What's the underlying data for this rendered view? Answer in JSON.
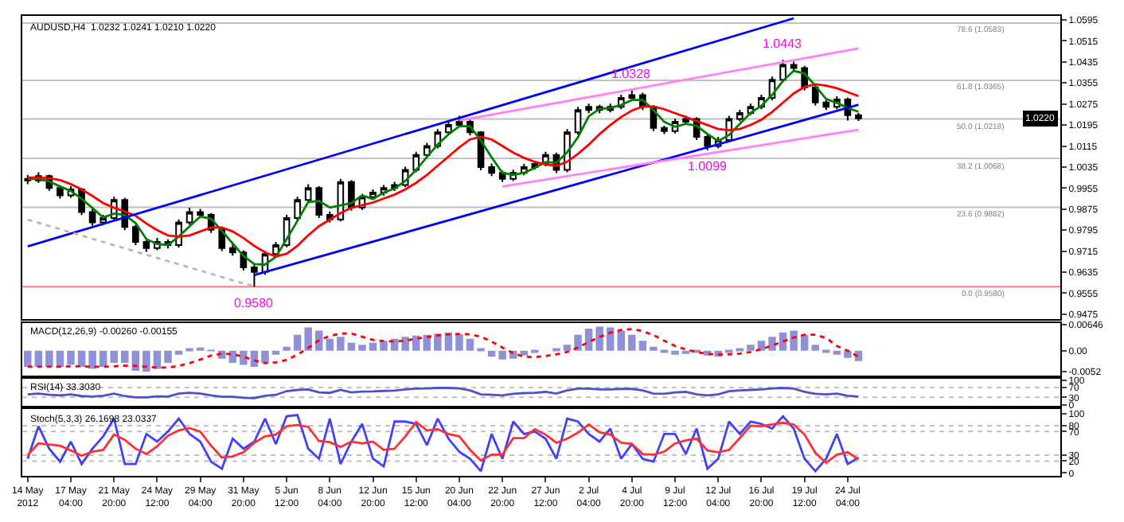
{
  "chart_data": [
    {
      "type": "candlestick",
      "title": "AUDUSD,H4  1.0232 1.0241 1.0210 1.0220",
      "tick_labels": "y",
      "color": "#000000",
      "categories": [
        null,
        null,
        null,
        null,
        null,
        null,
        null,
        null,
        null,
        null,
        null,
        null,
        null,
        null,
        null,
        null,
        null,
        null,
        null,
        null,
        null,
        null,
        null,
        null,
        null,
        null,
        null,
        null,
        null,
        null,
        null,
        null,
        null,
        null,
        null,
        null,
        null,
        null,
        null,
        null,
        null,
        null,
        null,
        null,
        null,
        null,
        null,
        null,
        null,
        null,
        null,
        null,
        null,
        null,
        null,
        null,
        null,
        null,
        null,
        null,
        null,
        null,
        null,
        null,
        null,
        null,
        null,
        null,
        null,
        null,
        null,
        null,
        null,
        null,
        null,
        null,
        null,
        null
      ],
      "ohlc": [
        [
          0.999,
          1.0005,
          0.997,
          0.9984
        ],
        [
          0.9984,
          1.0015,
          0.9975,
          1.0001
        ],
        [
          1.0001,
          1.0006,
          0.9945,
          0.9955
        ],
        [
          0.9955,
          0.9966,
          0.9915,
          0.9927
        ],
        [
          0.9927,
          0.9962,
          0.9918,
          0.995
        ],
        [
          0.995,
          0.9955,
          0.9852,
          0.9864
        ],
        [
          0.9864,
          0.9875,
          0.9812,
          0.9824
        ],
        [
          0.9824,
          0.9853,
          0.9815,
          0.9841
        ],
        [
          0.9841,
          0.9922,
          0.9832,
          0.991
        ],
        [
          0.991,
          0.9918,
          0.9795,
          0.9807
        ],
        [
          0.9807,
          0.9815,
          0.9738,
          0.975
        ],
        [
          0.975,
          0.9762,
          0.9712,
          0.9727
        ],
        [
          0.9727,
          0.9765,
          0.9718,
          0.975
        ],
        [
          0.975,
          0.976,
          0.9725,
          0.9738
        ],
        [
          0.9738,
          0.9836,
          0.9728,
          0.9824
        ],
        [
          0.9824,
          0.988,
          0.9815,
          0.9864
        ],
        [
          0.9864,
          0.9876,
          0.984,
          0.9853
        ],
        [
          0.9853,
          0.986,
          0.9784,
          0.9796
        ],
        [
          0.9796,
          0.9805,
          0.9715,
          0.9727
        ],
        [
          0.9727,
          0.974,
          0.9698,
          0.971
        ],
        [
          0.971,
          0.9718,
          0.9641,
          0.9653
        ],
        [
          0.9653,
          0.9668,
          0.958,
          0.9636
        ],
        [
          0.9636,
          0.9716,
          0.9625,
          0.9704
        ],
        [
          0.9704,
          0.975,
          0.9692,
          0.9738
        ],
        [
          0.9738,
          0.9853,
          0.973,
          0.9841
        ],
        [
          0.9841,
          0.9922,
          0.9832,
          0.991
        ],
        [
          0.991,
          0.997,
          0.99,
          0.9955
        ],
        [
          0.9955,
          0.9962,
          0.9841,
          0.9853
        ],
        [
          0.9853,
          0.9866,
          0.9824,
          0.9836
        ],
        [
          0.9836,
          0.999,
          0.9828,
          0.9978
        ],
        [
          0.9978,
          0.9985,
          0.9869,
          0.9881
        ],
        [
          0.9881,
          0.9933,
          0.9872,
          0.9921
        ],
        [
          0.9921,
          0.995,
          0.9912,
          0.9938
        ],
        [
          0.9938,
          0.9967,
          0.9926,
          0.9955
        ],
        [
          0.9955,
          0.9979,
          0.9944,
          0.9967
        ],
        [
          0.9967,
          1.0036,
          0.9958,
          1.0024
        ],
        [
          1.0024,
          1.0093,
          1.0015,
          1.0081
        ],
        [
          1.0081,
          1.0127,
          1.0072,
          1.0115
        ],
        [
          1.0115,
          1.0179,
          1.0106,
          1.0167
        ],
        [
          1.0167,
          1.0207,
          1.0158,
          1.0195
        ],
        [
          1.0195,
          1.023,
          1.0186,
          1.0207
        ],
        [
          1.0207,
          1.0215,
          1.0155,
          1.0167
        ],
        [
          1.0167,
          1.0172,
          1.0023,
          1.0035
        ],
        [
          1.0035,
          1.0048,
          1.0001,
          1.0013
        ],
        [
          1.0013,
          1.0022,
          0.9978,
          0.999
        ],
        [
          0.999,
          1.0025,
          0.9982,
          1.0013
        ],
        [
          1.0013,
          1.0047,
          1.0004,
          1.0035
        ],
        [
          1.0035,
          1.0059,
          1.0026,
          1.0047
        ],
        [
          1.0047,
          1.0093,
          1.0038,
          1.0081
        ],
        [
          1.0081,
          1.009,
          1.0012,
          1.0024
        ],
        [
          1.0024,
          1.0179,
          1.0015,
          1.0167
        ],
        [
          1.0167,
          1.0264,
          1.0158,
          1.0252
        ],
        [
          1.0252,
          1.0276,
          1.024,
          1.0264
        ],
        [
          1.0264,
          1.0272,
          1.024,
          1.0252
        ],
        [
          1.0252,
          1.0276,
          1.0243,
          1.0264
        ],
        [
          1.0264,
          1.031,
          1.0255,
          1.0298
        ],
        [
          1.0298,
          1.0328,
          1.0289,
          1.0309
        ],
        [
          1.0309,
          1.0318,
          1.0252,
          1.0264
        ],
        [
          1.0264,
          1.027,
          1.0172,
          1.0184
        ],
        [
          1.0184,
          1.0192,
          1.016,
          1.0172
        ],
        [
          1.0172,
          1.0219,
          1.0163,
          1.0207
        ],
        [
          1.0207,
          1.023,
          1.0198,
          1.0218
        ],
        [
          1.0218,
          1.0225,
          1.0138,
          1.015
        ],
        [
          1.015,
          1.0158,
          1.0099,
          1.0115
        ],
        [
          1.0115,
          1.015,
          1.0106,
          1.0138
        ],
        [
          1.0138,
          1.023,
          1.0129,
          1.0218
        ],
        [
          1.0218,
          1.0253,
          1.0209,
          1.0241
        ],
        [
          1.0241,
          1.0276,
          1.0232,
          1.0264
        ],
        [
          1.0264,
          1.031,
          1.0255,
          1.0298
        ],
        [
          1.0298,
          1.0379,
          1.0289,
          1.0367
        ],
        [
          1.0367,
          1.0443,
          1.0358,
          1.0424
        ],
        [
          1.0424,
          1.0436,
          1.04,
          1.0412
        ],
        [
          1.0412,
          1.042,
          1.0326,
          1.0338
        ],
        [
          1.0338,
          1.0346,
          1.0269,
          1.0281
        ],
        [
          1.0281,
          1.029,
          1.0252,
          1.0264
        ],
        [
          1.0264,
          1.0304,
          1.0255,
          1.0292
        ],
        [
          1.0292,
          1.03,
          1.0212,
          1.0232
        ],
        [
          1.0232,
          1.0241,
          1.021,
          1.022
        ]
      ],
      "series": [
        {
          "type": "line",
          "color": "#008000",
          "values": [
            0.999,
            0.999,
            0.998,
            0.9961,
            0.9944,
            0.9914,
            0.9879,
            0.9843,
            0.9858,
            0.9853,
            0.9822,
            0.9761,
            0.9742,
            0.9738,
            0.9771,
            0.9809,
            0.9847,
            0.9838,
            0.9792,
            0.9744,
            0.9697,
            0.9666,
            0.9664,
            0.9693,
            0.9761,
            0.983,
            0.9902,
            0.9906,
            0.9881,
            0.9889,
            0.9898,
            0.9927,
            0.9913,
            0.9938,
            0.9953,
            0.9982,
            1.0024,
            1.0073,
            1.0121,
            1.0159,
            1.019,
            1.019,
            1.0136,
            1.0072,
            1.0013,
            1.0005,
            1.0013,
            1.0032,
            1.0054,
            1.0051,
            1.0091,
            1.0148,
            1.0228,
            1.0256,
            1.026,
            1.0271,
            1.029,
            1.029,
            1.0252,
            1.0207,
            1.0188,
            1.0199,
            1.0192,
            1.0161,
            1.0134,
            1.0157,
            1.0199,
            1.0241,
            1.0268,
            1.031,
            1.0363,
            1.0401,
            1.0391,
            1.0344,
            1.0294,
            1.0279,
            1.026,
            1.0245
          ]
        },
        {
          "type": "line",
          "color": "#ff0000",
          "values": [
            0.9995,
            0.9995,
            0.9993,
            0.9985,
            0.997,
            0.995,
            0.9925,
            0.9898,
            0.988,
            0.9865,
            0.985,
            0.982,
            0.9795,
            0.9775,
            0.977,
            0.9775,
            0.979,
            0.9805,
            0.9805,
            0.979,
            0.9765,
            0.9735,
            0.971,
            0.9695,
            0.9705,
            0.9735,
            0.9775,
            0.981,
            0.9835,
            0.986,
            0.988,
            0.989,
            0.99,
            0.9915,
            0.993,
            0.995,
            0.9975,
            1.0005,
            1.004,
            1.0075,
            1.011,
            1.014,
            1.015,
            1.014,
            1.0115,
            1.009,
            1.007,
            1.0055,
            1.0045,
            1.004,
            1.0055,
            1.0085,
            1.012,
            1.016,
            1.0195,
            1.0225,
            1.025,
            1.0265,
            1.0265,
            1.0255,
            1.024,
            1.0225,
            1.021,
            1.0195,
            1.018,
            1.0175,
            1.018,
            1.0195,
            1.0215,
            1.0245,
            1.028,
            1.0315,
            1.034,
            1.035,
            1.0345,
            1.0335,
            1.032,
            1.0305
          ]
        },
        {
          "type": "line",
          "color": "#0000ff",
          "values": [
            0.9733,
            null,
            null,
            null,
            null,
            null,
            null,
            null,
            null,
            null,
            null,
            null,
            null,
            null,
            null,
            null,
            null,
            null,
            null,
            null,
            null,
            null,
            null,
            null,
            null,
            null,
            null,
            null,
            null,
            null,
            null,
            null,
            null,
            null,
            null,
            null,
            null,
            null,
            null,
            null,
            null,
            null,
            null,
            null,
            null,
            null,
            null,
            null,
            null,
            null,
            null,
            null,
            null,
            null,
            null,
            null,
            null,
            null,
            null,
            null,
            null,
            null,
            null,
            null,
            null,
            null,
            null,
            null,
            null,
            null,
            null,
            1.0601,
            null,
            null,
            null,
            null,
            null,
            null
          ]
        },
        {
          "type": "line",
          "color": "#0000ff",
          "values": [
            null,
            null,
            null,
            null,
            null,
            null,
            null,
            null,
            null,
            null,
            null,
            null,
            null,
            null,
            null,
            null,
            null,
            null,
            null,
            null,
            null,
            0.9624,
            null,
            null,
            null,
            null,
            null,
            null,
            null,
            null,
            null,
            null,
            null,
            null,
            null,
            null,
            null,
            null,
            null,
            null,
            null,
            null,
            null,
            null,
            null,
            null,
            null,
            null,
            null,
            null,
            null,
            null,
            null,
            null,
            null,
            null,
            null,
            null,
            null,
            null,
            null,
            null,
            null,
            null,
            null,
            null,
            null,
            null,
            null,
            null,
            null,
            null,
            null,
            null,
            null,
            null,
            null,
            1.0272
          ]
        },
        {
          "type": "line",
          "color": "#ff80ff",
          "values": [
            null,
            null,
            null,
            null,
            null,
            null,
            null,
            null,
            null,
            null,
            null,
            null,
            null,
            null,
            null,
            null,
            null,
            null,
            null,
            null,
            null,
            null,
            null,
            null,
            null,
            null,
            null,
            null,
            null,
            null,
            null,
            null,
            null,
            null,
            null,
            null,
            null,
            null,
            null,
            null,
            1.0212,
            null,
            null,
            null,
            null,
            null,
            null,
            null,
            null,
            null,
            null,
            null,
            null,
            null,
            null,
            null,
            null,
            null,
            null,
            null,
            null,
            null,
            null,
            null,
            null,
            null,
            null,
            null,
            null,
            null,
            null,
            null,
            null,
            null,
            null,
            null,
            null,
            1.0486
          ]
        },
        {
          "type": "line",
          "color": "#ff80ff",
          "values": [
            null,
            null,
            null,
            null,
            null,
            null,
            null,
            null,
            null,
            null,
            null,
            null,
            null,
            null,
            null,
            null,
            null,
            null,
            null,
            null,
            null,
            null,
            null,
            null,
            null,
            null,
            null,
            null,
            null,
            null,
            null,
            null,
            null,
            null,
            null,
            null,
            null,
            null,
            null,
            null,
            null,
            null,
            null,
            null,
            0.9961,
            null,
            null,
            null,
            null,
            null,
            null,
            null,
            null,
            null,
            null,
            null,
            null,
            null,
            null,
            null,
            null,
            null,
            null,
            null,
            null,
            null,
            null,
            null,
            null,
            null,
            null,
            null,
            null,
            null,
            null,
            null,
            null,
            1.0177
          ]
        },
        {
          "type": "line",
          "color": "#b8b8b8",
          "line_style": "dotted",
          "values": [
            0.9835,
            null,
            null,
            null,
            null,
            null,
            null,
            null,
            null,
            null,
            null,
            null,
            null,
            null,
            null,
            null,
            null,
            null,
            null,
            null,
            null,
            0.958,
            null,
            null,
            null,
            null,
            null,
            null,
            null,
            null,
            null,
            null,
            null,
            null,
            null,
            null,
            null,
            null,
            null,
            null,
            null,
            null,
            null,
            null,
            null,
            null,
            null,
            null,
            null,
            null,
            null,
            null,
            null,
            null,
            null,
            null,
            null,
            null,
            null,
            null,
            null,
            null,
            null,
            null,
            null,
            null,
            null,
            null,
            null,
            null,
            null,
            null,
            null,
            null,
            null,
            null,
            null,
            null
          ]
        }
      ],
      "ref_lines": [
        {
          "axis": "y",
          "value": 1.0583,
          "label": "78.6 (1.0583)",
          "color": "#c0c0c0"
        },
        {
          "axis": "y",
          "value": 1.0365,
          "label": "61.8 (1.0365)",
          "color": "#c0c0c0"
        },
        {
          "axis": "y",
          "value": 1.0218,
          "label": "50.0 (1.0218)",
          "color": "#c0c0c0"
        },
        {
          "axis": "y",
          "value": 1.0068,
          "label": "38.2 (1.0068)",
          "color": "#c0c0c0"
        },
        {
          "axis": "y",
          "value": 0.9882,
          "label": "23.6 (0.9882)",
          "color": "#c0c0c0"
        },
        {
          "axis": "y",
          "value": 0.958,
          "label": "0.0 (0.9580)",
          "color": "#ff8080"
        }
      ],
      "annotations": [
        {
          "text": "0.9580",
          "y": 0.958
        },
        {
          "text": "1.0328",
          "y": 1.0328
        },
        {
          "text": "1.0099",
          "y": 1.0099
        },
        {
          "text": "1.0443",
          "y": 1.0443
        },
        "1.0220"
      ],
      "ylim": [
        0.9455,
        1.061
      ],
      "yticks": [
        1.0595,
        1.0515,
        1.0435,
        1.0355,
        1.0275,
        1.0195,
        1.0115,
        1.0035,
        0.9955,
        0.9875,
        0.9795,
        0.9715,
        0.9635,
        0.9555,
        0.9475
      ]
    },
    {
      "type": "bar",
      "title": "MACD(12,26,9) -0.00260 -0.00155",
      "tick_labels": "y",
      "categories": [
        null,
        null,
        null,
        null,
        null,
        null,
        null,
        null,
        null,
        null,
        null,
        null,
        null,
        null,
        null,
        null,
        null,
        null,
        null,
        null,
        null,
        null,
        null,
        null,
        null,
        null,
        null,
        null,
        null,
        null,
        null,
        null,
        null,
        null,
        null,
        null,
        null,
        null,
        null,
        null,
        null,
        null,
        null,
        null,
        null,
        null,
        null,
        null,
        null,
        null,
        null,
        null,
        null,
        null,
        null,
        null,
        null,
        null,
        null,
        null,
        null,
        null,
        null,
        null,
        null,
        null,
        null,
        null,
        null,
        null,
        null,
        null,
        null,
        null,
        null,
        null,
        null,
        null
      ],
      "series": [
        {
          "type": "bar",
          "color": "#9090d8",
          "values": [
            -0.004,
            -0.004,
            -0.004,
            -0.004,
            -0.0035,
            -0.004,
            -0.0045,
            -0.004,
            -0.003,
            -0.003,
            -0.005,
            -0.0052,
            -0.0045,
            -0.003,
            -0.001,
            0.0005,
            0.0008,
            0.0002,
            -0.002,
            -0.003,
            -0.0035,
            -0.004,
            -0.003,
            -0.001,
            0.001,
            0.004,
            0.0058,
            0.005,
            0.003,
            0.0035,
            0.002,
            0.0015,
            0.002,
            0.0025,
            0.003,
            0.0035,
            0.0038,
            0.004,
            0.0043,
            0.0045,
            0.0042,
            0.003,
            0.0005,
            -0.0015,
            -0.0022,
            -0.002,
            -0.0012,
            -0.0005,
            0.0,
            0.0003,
            0.0015,
            0.004,
            0.0055,
            0.006,
            0.0058,
            0.005,
            0.004,
            0.0025,
            0.001,
            -0.0005,
            -0.001,
            -0.0008,
            -0.0005,
            -0.0012,
            -0.0015,
            -0.0005,
            0.0005,
            0.0015,
            0.0025,
            0.0035,
            0.0045,
            0.005,
            0.004,
            0.0015,
            -0.0002,
            -0.001,
            -0.0018,
            -0.0026
          ]
        },
        {
          "type": "line",
          "color": "#ff0000",
          "line_style": "dotted",
          "values": [
            -0.004,
            -0.004,
            -0.004,
            -0.004,
            -0.0039,
            -0.0039,
            -0.004,
            -0.004,
            -0.0039,
            -0.0037,
            -0.0038,
            -0.004,
            -0.0042,
            -0.0042,
            -0.0038,
            -0.0031,
            -0.0022,
            -0.0012,
            -0.0007,
            -0.0009,
            -0.0015,
            -0.0024,
            -0.0031,
            -0.0029,
            -0.0023,
            -0.001,
            0.0007,
            0.0026,
            0.0037,
            0.0043,
            0.0043,
            0.0035,
            0.0027,
            0.0024,
            0.0023,
            0.0025,
            0.003,
            0.0034,
            0.0038,
            0.0041,
            0.0042,
            0.0041,
            0.0035,
            0.0023,
            0.0008,
            -0.0006,
            -0.0015,
            -0.0016,
            -0.0013,
            -0.0009,
            -0.0003,
            0.0008,
            0.0022,
            0.0034,
            0.0045,
            0.0052,
            0.0054,
            0.0049,
            0.0039,
            0.0025,
            0.0012,
            0.0003,
            -0.0003,
            -0.0008,
            -0.0009,
            -0.0009,
            -0.0007,
            -0.0003,
            0.0004,
            0.0013,
            0.0023,
            0.0033,
            0.004,
            0.004,
            0.0032,
            0.0012,
            0.0,
            -0.0015
          ]
        }
      ],
      "ylim": [
        -0.0062,
        0.007
      ],
      "yticks": [
        {
          "value": 0.00646,
          "label": "0.00646"
        },
        {
          "value": 0,
          "label": "0.00"
        },
        {
          "value": -0.0052,
          "label": "-0.0052"
        }
      ]
    },
    {
      "type": "line",
      "title": "RSI(14) 33.3030",
      "tick_labels": "y",
      "categories": [
        null,
        null,
        null,
        null,
        null,
        null,
        null,
        null,
        null,
        null,
        null,
        null,
        null,
        null,
        null,
        null,
        null,
        null,
        null,
        null,
        null,
        null,
        null,
        null,
        null,
        null,
        null,
        null,
        null,
        null,
        null,
        null,
        null,
        null,
        null,
        null,
        null,
        null,
        null,
        null,
        null,
        null,
        null,
        null,
        null,
        null,
        null,
        null,
        null,
        null,
        null,
        null,
        null,
        null,
        null,
        null,
        null,
        null,
        null,
        null,
        null,
        null,
        null,
        null,
        null,
        null,
        null,
        null,
        null,
        null,
        null,
        null,
        null,
        null,
        null,
        null,
        null,
        null
      ],
      "series": [
        {
          "color": "#5050c8",
          "values": [
            42,
            45,
            40,
            38,
            42,
            35,
            33,
            36,
            45,
            35,
            30,
            30,
            34,
            33,
            45,
            48,
            45,
            38,
            32,
            32,
            28,
            27,
            36,
            40,
            55,
            60,
            62,
            50,
            48,
            60,
            50,
            53,
            54,
            56,
            57,
            62,
            65,
            66,
            68,
            68,
            66,
            58,
            42,
            40,
            38,
            44,
            47,
            48,
            52,
            45,
            58,
            65,
            65,
            62,
            62,
            64,
            64,
            58,
            45,
            44,
            50,
            52,
            42,
            38,
            42,
            55,
            58,
            60,
            62,
            66,
            68,
            65,
            52,
            44,
            42,
            45,
            36,
            33
          ]
        }
      ],
      "ref_lines": [
        {
          "axis": "y",
          "value": 70,
          "color": "#c0c0c0",
          "line_style": "dotted"
        },
        {
          "axis": "y",
          "value": 30,
          "color": "#c0c0c0",
          "line_style": "dotted"
        }
      ],
      "ylim": [
        -5,
        105
      ],
      "yticks": [
        100,
        70,
        30,
        0
      ]
    },
    {
      "type": "line",
      "title": "Stoch(5,3,3) 26.1698 23.0337",
      "categories": [
        "14 May 2012",
        null,
        null,
        null,
        "17 May 04:00",
        null,
        null,
        null,
        "21 May 20:00",
        null,
        null,
        null,
        "24 May 12:00",
        null,
        null,
        null,
        "29 May 04:00",
        null,
        null,
        null,
        "31 May 20:00",
        null,
        null,
        null,
        "5 Jun 12:00",
        null,
        null,
        null,
        "8 Jun 04:00",
        null,
        null,
        null,
        "12 Jun 20:00",
        null,
        null,
        null,
        "15 Jun 12:00",
        null,
        null,
        null,
        "20 Jun 04:00",
        null,
        null,
        null,
        "22 Jun 20:00",
        null,
        null,
        null,
        "27 Jun 12:00",
        null,
        null,
        null,
        "2 Jul 04:00",
        null,
        null,
        null,
        "4 Jul 20:00",
        null,
        null,
        null,
        "9 Jul 12:00",
        null,
        null,
        null,
        "12 Jul 04:00",
        null,
        null,
        null,
        "16 Jul 20:00",
        null,
        null,
        null,
        "19 Jul 12:00",
        null,
        null,
        null,
        "24 Jul 04:00",
        null
      ],
      "series": [
        {
          "color": "#4040ff",
          "values": [
            24,
            79,
            41,
            19,
            53,
            15,
            41,
            62,
            92,
            15,
            15,
            66,
            53,
            70,
            92,
            66,
            53,
            19,
            7,
            58,
            41,
            53,
            92,
            49,
            96,
            98,
            41,
            24,
            92,
            15,
            53,
            83,
            24,
            11,
            87,
            87,
            83,
            47,
            92,
            58,
            36,
            24,
            3,
            66,
            24,
            87,
            66,
            70,
            58,
            24,
            92,
            87,
            66,
            53,
            75,
            24,
            49,
            24,
            19,
            66,
            66,
            32,
            75,
            7,
            24,
            87,
            66,
            87,
            83,
            75,
            96,
            75,
            24,
            3,
            24,
            66,
            15,
            26
          ]
        },
        {
          "color": "#ff3030",
          "values": [
            30,
            50,
            48,
            46,
            38,
            29,
            36,
            39,
            65,
            56,
            41,
            32,
            45,
            63,
            72,
            76,
            70,
            46,
            26,
            28,
            35,
            51,
            62,
            65,
            79,
            81,
            78,
            54,
            52,
            44,
            53,
            50,
            53,
            39,
            41,
            62,
            86,
            72,
            74,
            66,
            62,
            39,
            21,
            31,
            31,
            59,
            59,
            74,
            65,
            51,
            58,
            68,
            82,
            69,
            65,
            51,
            49,
            32,
            31,
            36,
            50,
            55,
            58,
            38,
            35,
            39,
            59,
            80,
            79,
            82,
            85,
            82,
            65,
            34,
            17,
            31,
            35,
            23
          ]
        }
      ],
      "ref_lines": [
        {
          "axis": "y",
          "value": 80,
          "color": "#c0c0c0",
          "line_style": "dotted"
        },
        {
          "axis": "y",
          "value": 70,
          "color": "#c0c0c0",
          "line_style": "dotted"
        },
        {
          "axis": "y",
          "value": 30,
          "color": "#c0c0c0",
          "line_style": "dotted"
        },
        {
          "axis": "y",
          "value": 20,
          "color": "#c0c0c0",
          "line_style": "dotted"
        }
      ],
      "ylim": [
        -5,
        108
      ],
      "yticks": [
        100,
        80,
        70,
        30,
        20,
        0
      ]
    }
  ]
}
